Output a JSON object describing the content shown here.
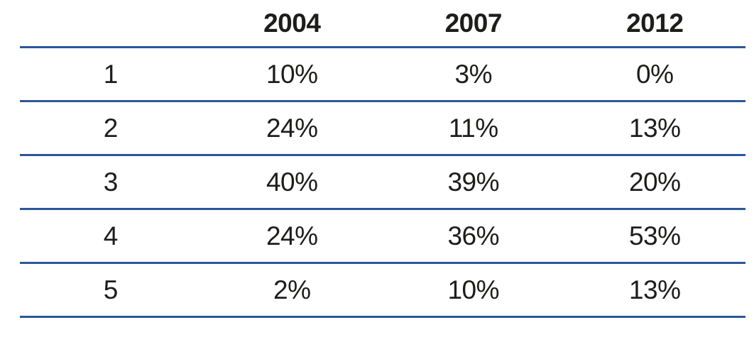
{
  "colors": {
    "rule_color": "#2b579a",
    "text_color": "#1d1d1b",
    "background": "#ffffff"
  },
  "chart_data": {
    "type": "table",
    "title": "",
    "columns": [
      "",
      "2004",
      "2007",
      "2012"
    ],
    "rows": [
      {
        "label": "1",
        "values": [
          "10%",
          "3%",
          "0%"
        ]
      },
      {
        "label": "2",
        "values": [
          "24%",
          "11%",
          "13%"
        ]
      },
      {
        "label": "3",
        "values": [
          "40%",
          "39%",
          "20%"
        ]
      },
      {
        "label": "4",
        "values": [
          "24%",
          "36%",
          "53%"
        ]
      },
      {
        "label": "5",
        "values": [
          "2%",
          "10%",
          "13%"
        ]
      }
    ],
    "layout": {
      "grid": "horizontal-rules-only",
      "header_bold": true,
      "cell_alignment": "center"
    }
  }
}
